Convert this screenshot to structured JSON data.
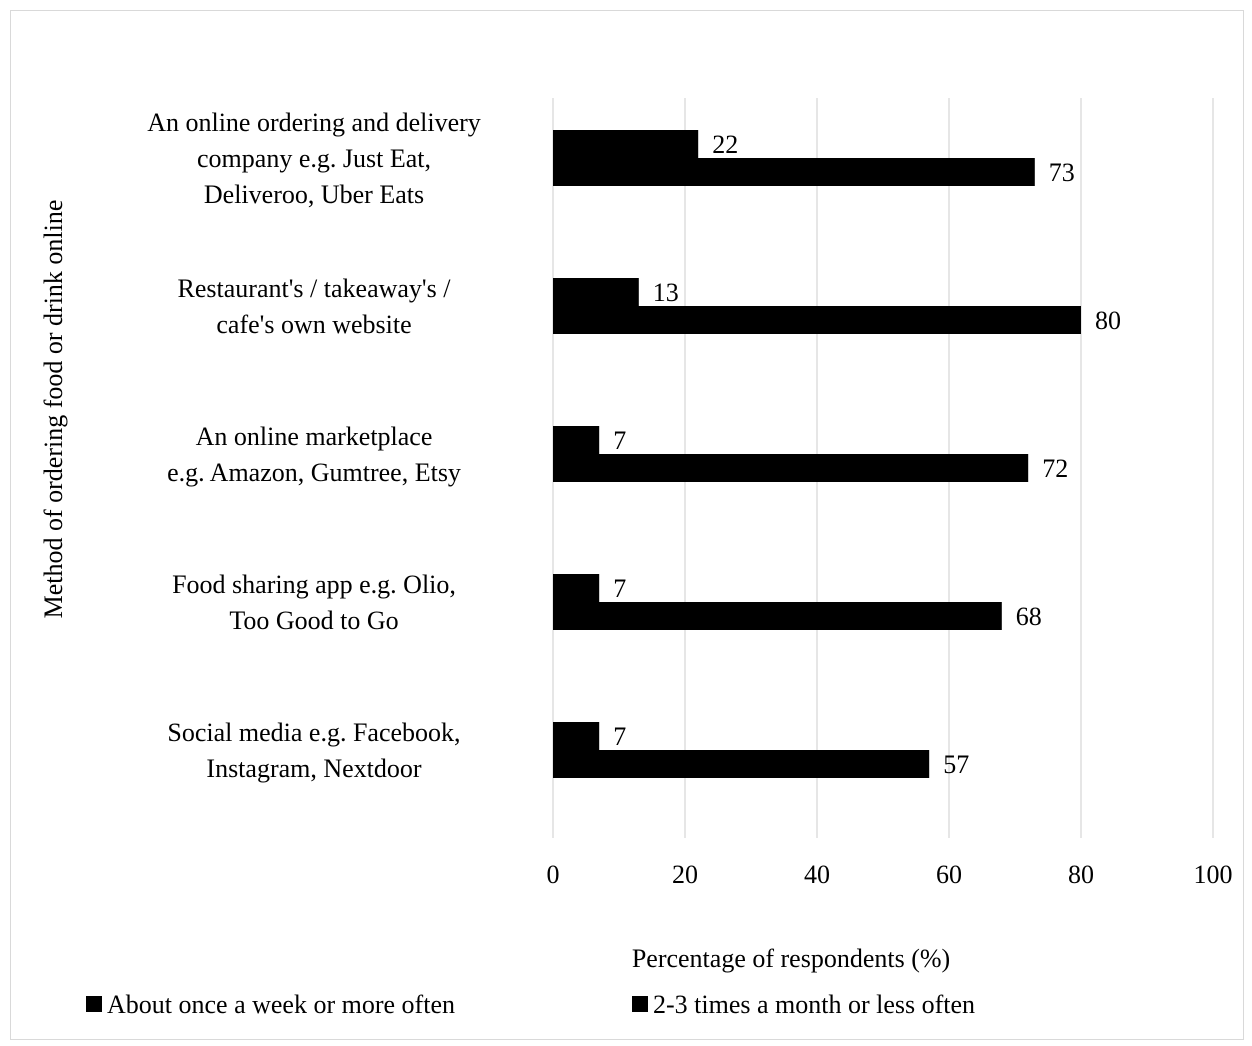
{
  "chart_data": {
    "type": "bar",
    "orientation": "horizontal",
    "categories": [
      [
        "An online ordering and delivery",
        "company e.g. Just Eat,",
        "Deliveroo, Uber Eats"
      ],
      [
        "Restaurant's / takeaway's /",
        "cafe's own website"
      ],
      [
        "An online marketplace",
        "e.g. Amazon, Gumtree, Etsy"
      ],
      [
        "Food sharing app e.g. Olio,",
        "Too Good to Go"
      ],
      [
        "Social media e.g. Facebook,",
        "Instagram, Nextdoor"
      ]
    ],
    "series": [
      {
        "name": "About once a week or more often",
        "values": [
          22,
          13,
          7,
          7,
          7
        ],
        "color": "#000000"
      },
      {
        "name": "2-3 times a month or less often",
        "values": [
          73,
          80,
          72,
          68,
          57
        ],
        "color": "#000000"
      }
    ],
    "xlabel": "Percentage of respondents (%)",
    "ylabel": "Method of ordering food or drink online",
    "xlim": [
      0,
      100
    ],
    "xticks": [
      0,
      20,
      40,
      60,
      80,
      100
    ],
    "grid": "vertical",
    "legend_position": "bottom",
    "gridline_color": "#d9d9d9"
  }
}
